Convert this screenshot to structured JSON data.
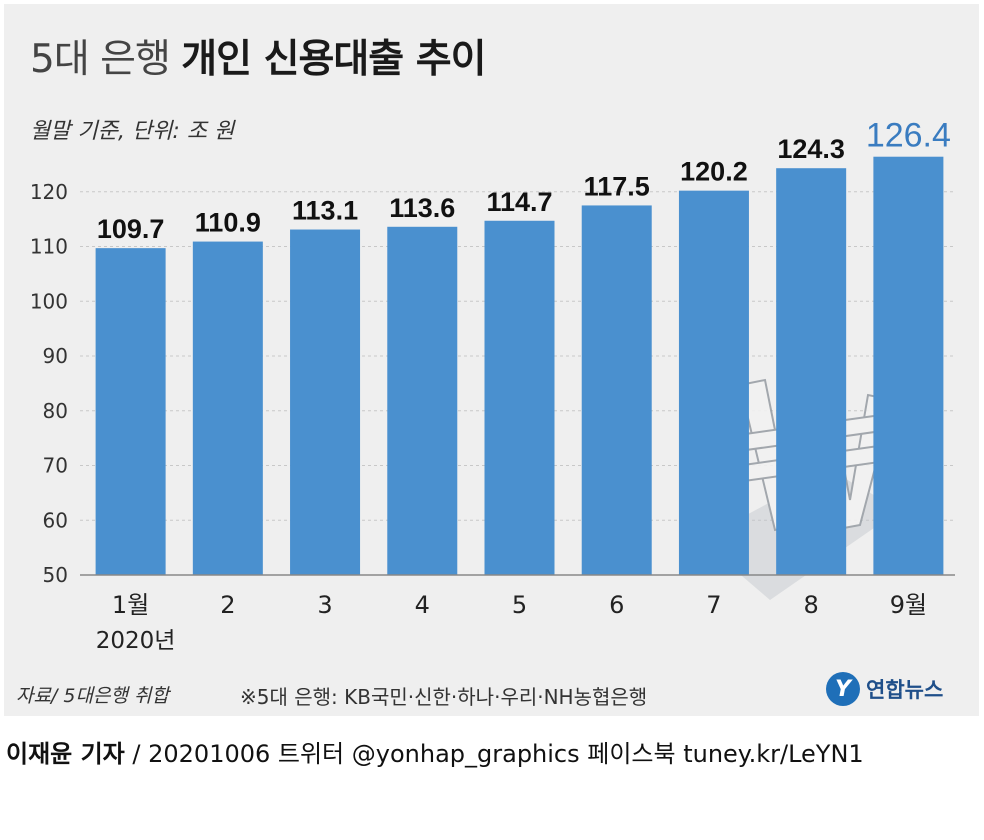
{
  "header": {
    "title_light": "5대 은행",
    "title_bold": "개인 신용대출 추이",
    "subtitle": "월말 기준, 단위: 조 원"
  },
  "footer": {
    "source": "자료/ 5대은행 취합",
    "note": "※5대 은행: KB국민·신한·하나·우리·NH농협은행",
    "logo_mark": "Y",
    "logo_text": "연합뉴스"
  },
  "credit": {
    "name": "이재윤 기자",
    "rest": " / 20201006   트위터 @yonhap_graphics   페이스북 tuney.kr/LeYN1"
  },
  "chart_data": {
    "type": "bar",
    "categories": [
      "1월",
      "2",
      "3",
      "4",
      "5",
      "6",
      "7",
      "8",
      "9월"
    ],
    "year_label": "2020년",
    "values": [
      109.7,
      110.9,
      113.1,
      113.6,
      114.7,
      117.5,
      120.2,
      124.3,
      126.4
    ],
    "value_labels": [
      "109.7",
      "110.9",
      "113.1",
      "113.6",
      "114.7",
      "117.5",
      "120.2",
      "124.3",
      "126.4"
    ],
    "yticks": [
      "50",
      "60",
      "70",
      "80",
      "90",
      "100",
      "110",
      "120"
    ],
    "ylim": [
      50,
      130
    ],
    "grid": true,
    "bar_color": "#4a90cf",
    "highlight_label_color": "#3a7cc0",
    "label_color": "#111111"
  }
}
